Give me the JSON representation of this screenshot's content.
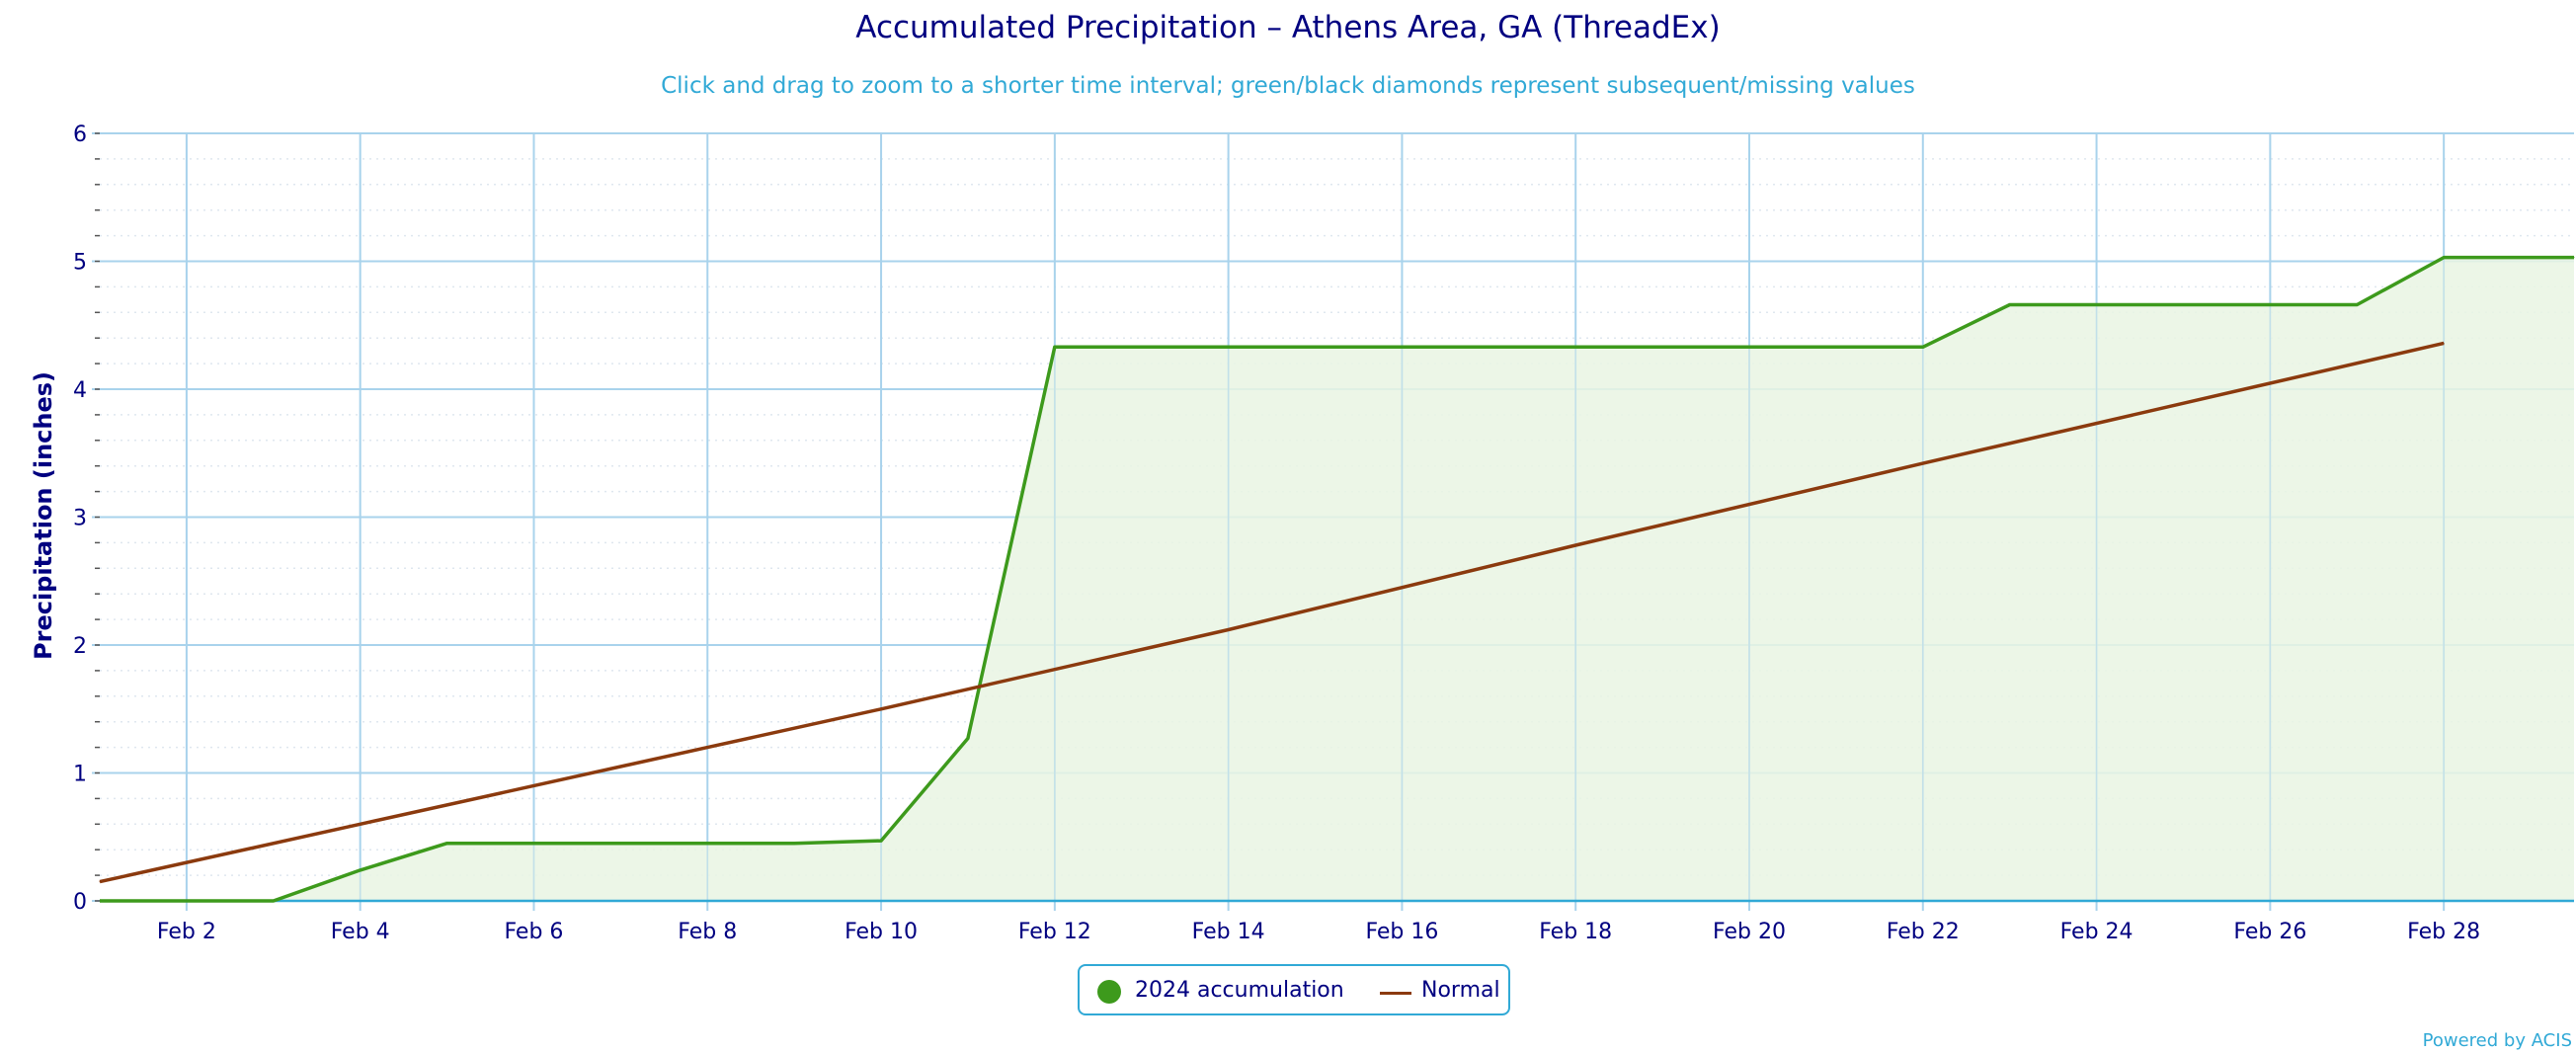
{
  "chart_data": {
    "type": "area",
    "title": "Accumulated Precipitation – Athens Area, GA (ThreadEx)",
    "subtitle": "Click and drag to zoom to a shorter time interval; green/black diamonds represent subsequent/missing values",
    "xlabel": "",
    "ylabel": "Precipitation (inches)",
    "ylim": [
      0,
      6
    ],
    "yticks": [
      "0",
      "1",
      "2",
      "3",
      "4",
      "5",
      "6"
    ],
    "xlim": [
      1,
      29.5
    ],
    "xticks": [
      {
        "day": 2,
        "label": "Feb 2"
      },
      {
        "day": 4,
        "label": "Feb 4"
      },
      {
        "day": 6,
        "label": "Feb 6"
      },
      {
        "day": 8,
        "label": "Feb 8"
      },
      {
        "day": 10,
        "label": "Feb 10"
      },
      {
        "day": 12,
        "label": "Feb 12"
      },
      {
        "day": 14,
        "label": "Feb 14"
      },
      {
        "day": 16,
        "label": "Feb 16"
      },
      {
        "day": 18,
        "label": "Feb 18"
      },
      {
        "day": 20,
        "label": "Feb 20"
      },
      {
        "day": 22,
        "label": "Feb 22"
      },
      {
        "day": 24,
        "label": "Feb 24"
      },
      {
        "day": 26,
        "label": "Feb 26"
      },
      {
        "day": 28,
        "label": "Feb 28"
      }
    ],
    "grid": true,
    "legend_position": "bottom-center",
    "series": [
      {
        "name": "2024 accumulation",
        "type": "area",
        "color": "#3d9a1c",
        "fill": "#e9f4e3",
        "x": [
          1,
          2,
          3,
          4,
          5,
          6,
          7,
          8,
          9,
          10,
          11,
          12,
          13,
          14,
          15,
          16,
          17,
          18,
          19,
          20,
          21,
          22,
          23,
          24,
          25,
          26,
          27,
          28,
          29,
          29.5
        ],
        "values": [
          0,
          0,
          0,
          0.24,
          0.45,
          0.45,
          0.45,
          0.45,
          0.45,
          0.47,
          1.27,
          4.33,
          4.33,
          4.33,
          4.33,
          4.33,
          4.33,
          4.33,
          4.33,
          4.33,
          4.33,
          4.33,
          4.66,
          4.66,
          4.66,
          4.66,
          4.66,
          5.03,
          5.03,
          5.03
        ]
      },
      {
        "name": "Normal",
        "type": "line",
        "color": "#8b3a0e",
        "x": [
          1,
          4,
          8,
          10,
          14,
          18,
          22,
          28
        ],
        "values": [
          0.15,
          0.6,
          1.2,
          1.5,
          2.12,
          2.78,
          3.42,
          4.36
        ]
      }
    ]
  },
  "credits": "Powered by ACIS",
  "colors": {
    "title": "#000080",
    "subtitle": "#31a9d6",
    "grid": "#a9d3ec",
    "axis": "#31a9d6"
  }
}
